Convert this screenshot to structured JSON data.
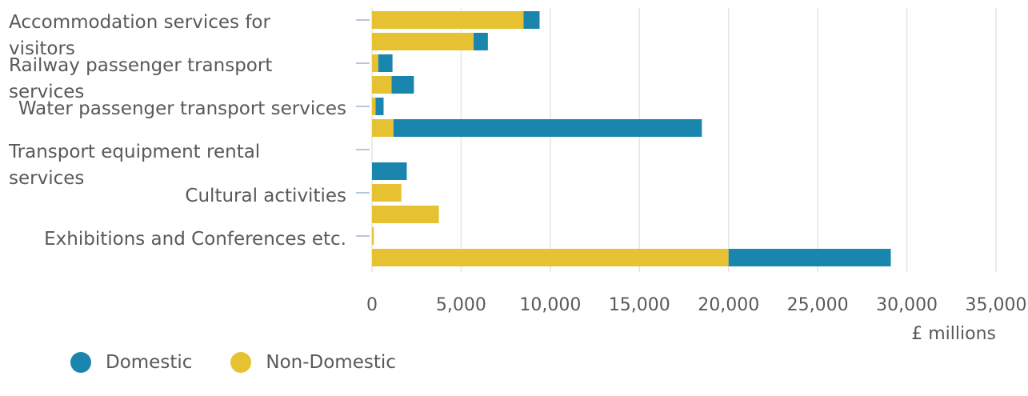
{
  "chart_data": {
    "type": "bar",
    "orientation": "horizontal",
    "stacked": true,
    "categories": [
      "Accommodation services for visitors",
      "Railway passenger transport services",
      "Water passenger transport services",
      "Transport equipment rental services",
      "Cultural activities",
      "Exhibitions and Conferences etc."
    ],
    "bar_rows": [
      {
        "category": 0,
        "non_domestic": 8500,
        "domestic": 900
      },
      {
        "category": 0,
        "non_domestic": 5700,
        "domestic": 800
      },
      {
        "category": 1,
        "non_domestic": 350,
        "domestic": 800
      },
      {
        "category": 1,
        "non_domestic": 1100,
        "domestic": 1250
      },
      {
        "category": 2,
        "non_domestic": 200,
        "domestic": 450
      },
      {
        "category": 2,
        "non_domestic": 1200,
        "domestic": 17300
      },
      {
        "category": 3,
        "non_domestic": 0,
        "domestic": 0
      },
      {
        "category": 3,
        "non_domestic": 0,
        "domestic": 1950
      },
      {
        "category": 4,
        "non_domestic": 1650,
        "domestic": 0
      },
      {
        "category": 4,
        "non_domestic": 3750,
        "domestic": 0
      },
      {
        "category": 5,
        "non_domestic": 100,
        "domestic": 0
      },
      {
        "category": 5,
        "non_domestic": 20000,
        "domestic": 9100
      }
    ],
    "series": [
      {
        "name": "Domestic",
        "color": "#1a86ad"
      },
      {
        "name": "Non-Domestic",
        "color": "#e6c232"
      }
    ],
    "xlim": [
      0,
      35000
    ],
    "xticks": [
      "0",
      "5,000",
      "10,000",
      "15,000",
      "20,000",
      "25,000",
      "30,000",
      "35,000"
    ],
    "xlabel": "£ millions",
    "grid": true,
    "legend_position": "bottom-left"
  }
}
